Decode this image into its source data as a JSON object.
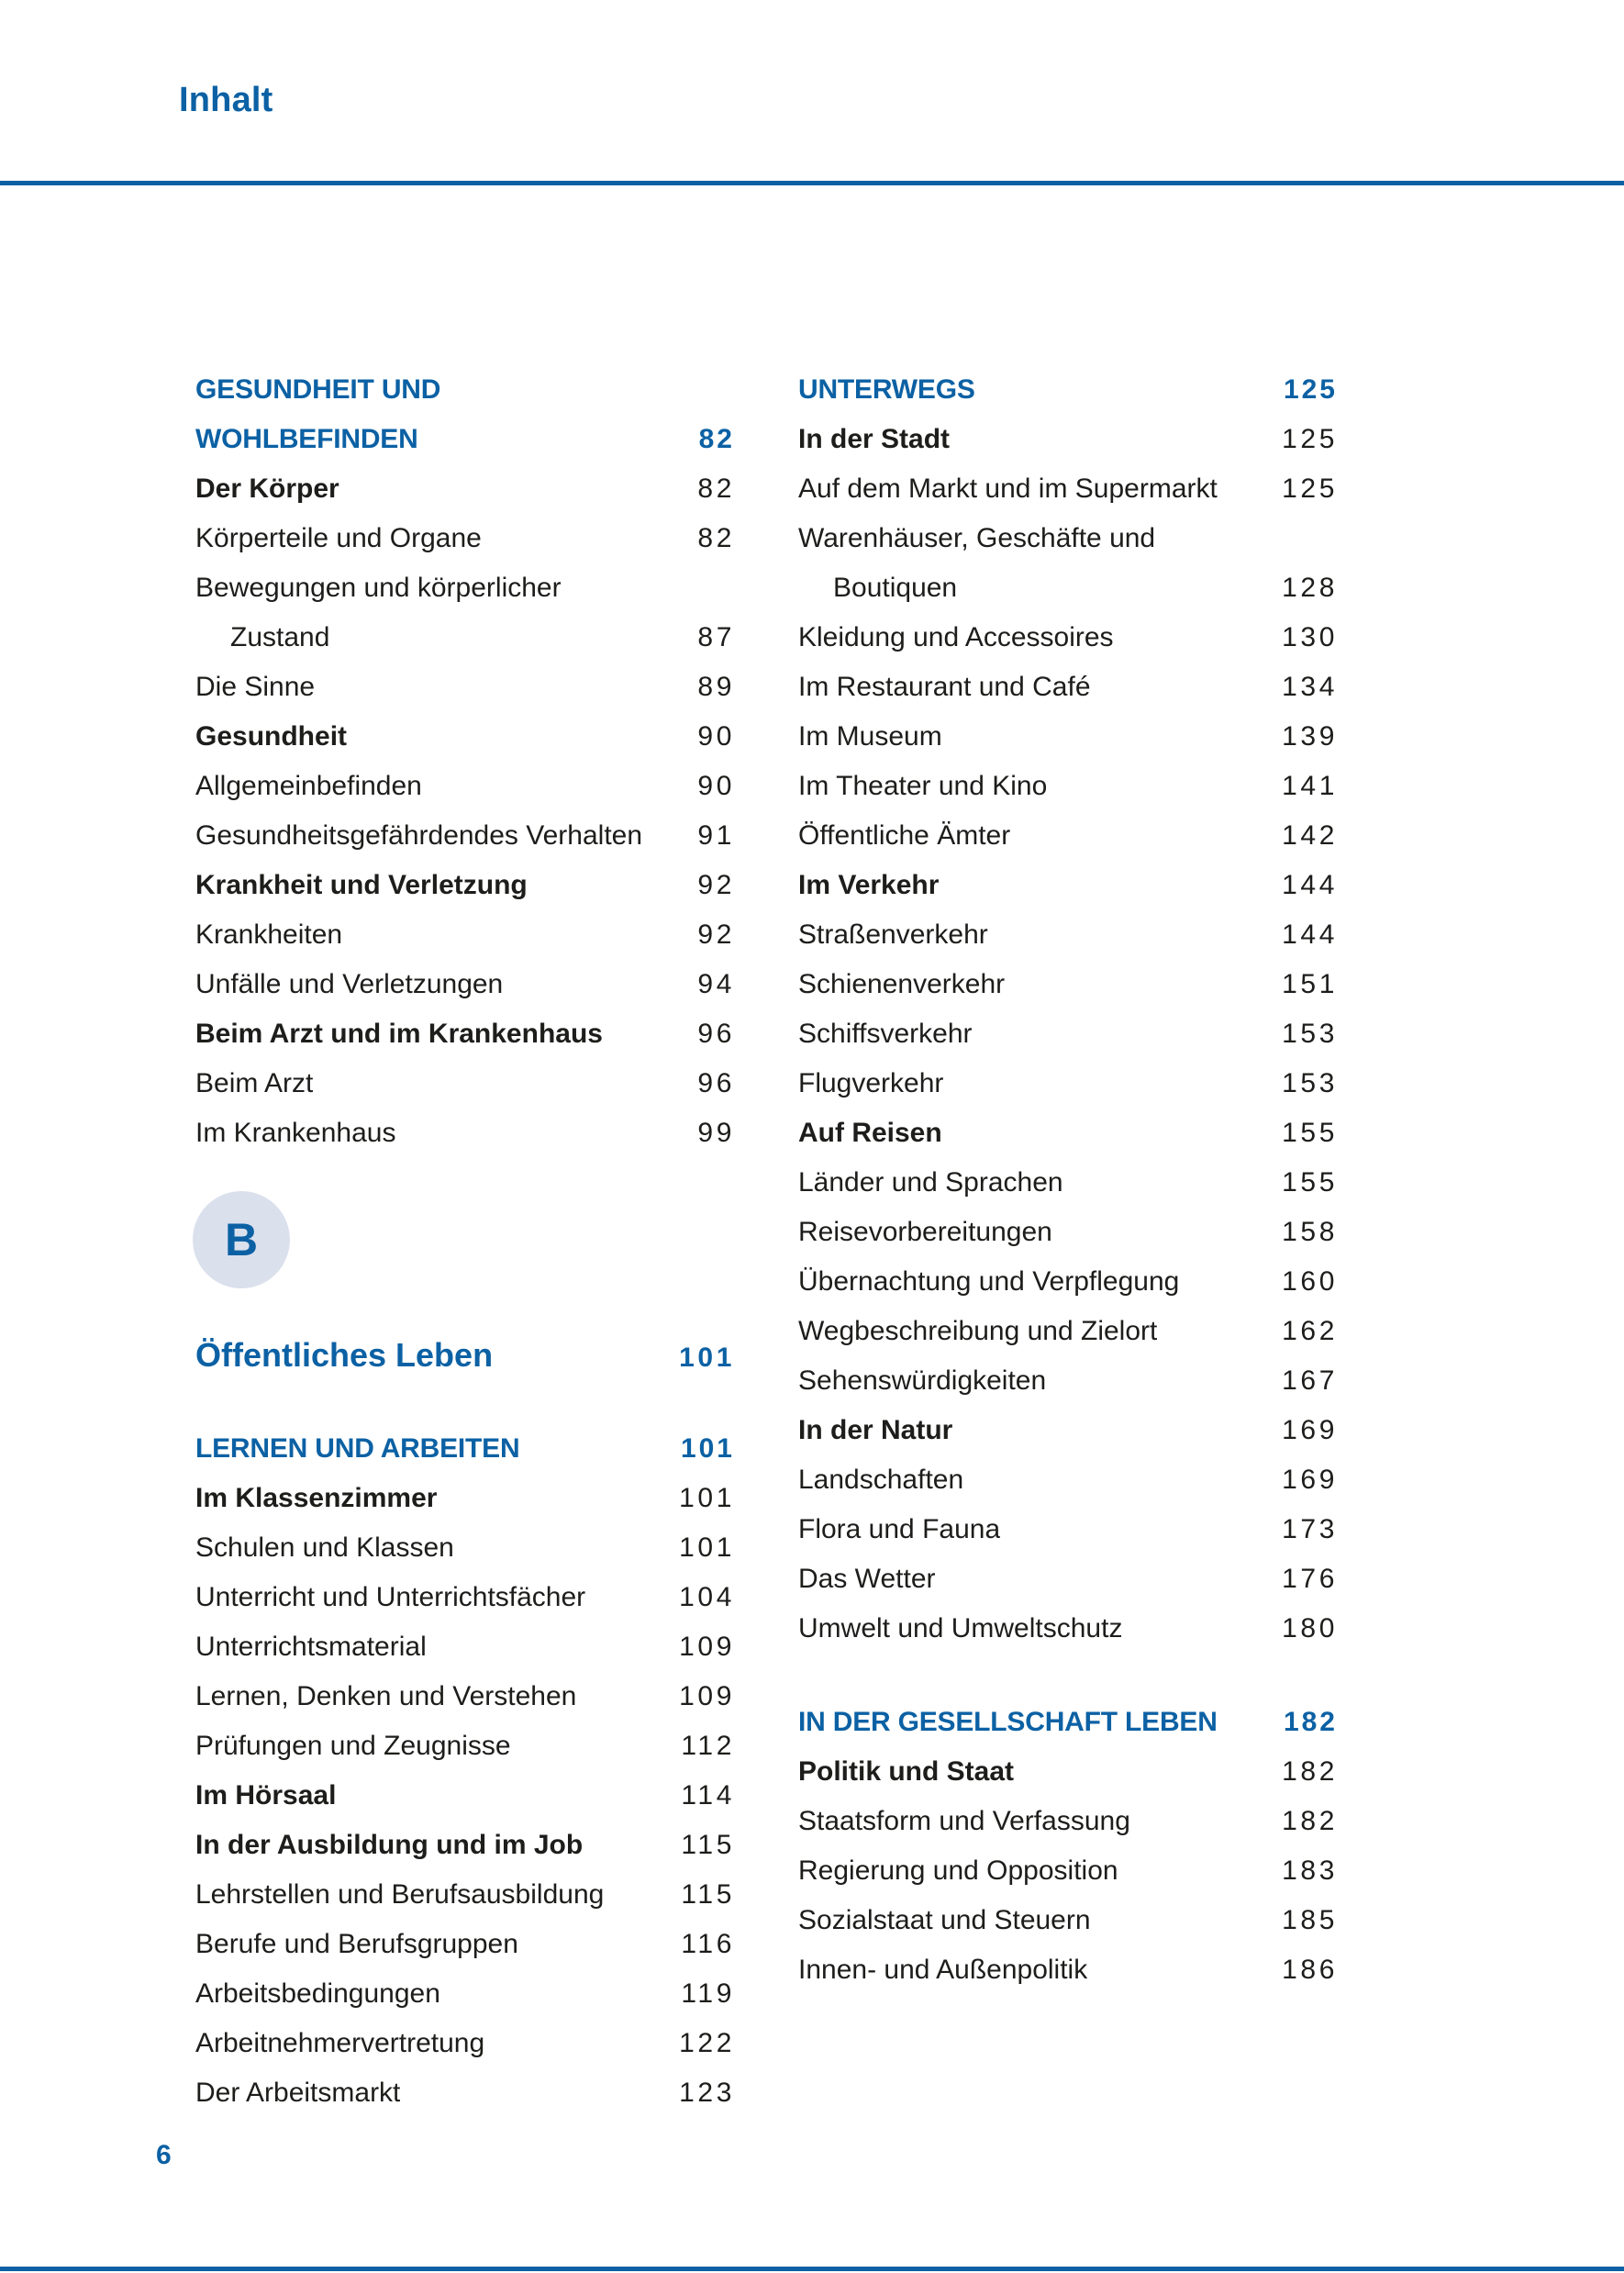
{
  "header": {
    "title": "Inhalt"
  },
  "footer": {
    "page_number": "6"
  },
  "colors": {
    "accent": "#0c61a4",
    "text": "#1d1d1b",
    "badge_bg": "#dbe0ed"
  },
  "badge": {
    "letter": "B"
  },
  "toc": {
    "left": [
      {
        "label": "GESUNDHEIT UND",
        "page": "",
        "style": "section"
      },
      {
        "label": "WOHLBEFINDEN",
        "page": "82",
        "style": "section"
      },
      {
        "label": "Der Körper",
        "page": "82",
        "style": "bold"
      },
      {
        "label": "Körperteile und Organe",
        "page": "82",
        "style": "regular"
      },
      {
        "label": "Bewegungen und körperlicher",
        "page": "",
        "style": "regular"
      },
      {
        "label": "Zustand",
        "page": "87",
        "style": "cont"
      },
      {
        "label": "Die Sinne",
        "page": "89",
        "style": "regular"
      },
      {
        "label": "Gesundheit",
        "page": "90",
        "style": "bold"
      },
      {
        "label": "Allgemeinbefinden",
        "page": "90",
        "style": "regular"
      },
      {
        "label": "Gesundheitsgefährdendes Verhalten",
        "page": "91",
        "style": "regular"
      },
      {
        "label": "Krankheit und Verletzung",
        "page": "92",
        "style": "bold"
      },
      {
        "label": "Krankheiten",
        "page": "92",
        "style": "regular"
      },
      {
        "label": "Unfälle und Verletzungen",
        "page": "94",
        "style": "regular"
      },
      {
        "label": "Beim Arzt und im Krankenhaus",
        "page": "96",
        "style": "bold"
      },
      {
        "label": "Beim Arzt",
        "page": "96",
        "style": "regular"
      },
      {
        "label": "Im Krankenhaus",
        "page": "99",
        "style": "regular"
      },
      {
        "label": "B",
        "page": "",
        "style": "badge"
      },
      {
        "label": "Öffentliches Leben",
        "page": "101",
        "style": "part"
      },
      {
        "label": "",
        "page": "",
        "style": "gap"
      },
      {
        "label": "LERNEN UND ARBEITEN",
        "page": "101",
        "style": "section"
      },
      {
        "label": "Im Klassenzimmer",
        "page": "101",
        "style": "bold"
      },
      {
        "label": "Schulen und Klassen",
        "page": "101",
        "style": "regular"
      },
      {
        "label": "Unterricht und Unterrichtsfächer",
        "page": "104",
        "style": "regular"
      },
      {
        "label": "Unterrichtsmaterial",
        "page": "109",
        "style": "regular"
      },
      {
        "label": "Lernen, Denken und Verstehen",
        "page": "109",
        "style": "regular"
      },
      {
        "label": "Prüfungen und Zeugnisse",
        "page": "112",
        "style": "regular"
      },
      {
        "label": "Im Hörsaal",
        "page": "114",
        "style": "bold"
      },
      {
        "label": "In der Ausbildung und im Job",
        "page": "115",
        "style": "bold"
      },
      {
        "label": "Lehrstellen und Berufsausbildung",
        "page": "115",
        "style": "regular"
      },
      {
        "label": "Berufe und Berufsgruppen",
        "page": "116",
        "style": "regular"
      },
      {
        "label": "Arbeitsbedingungen",
        "page": "119",
        "style": "regular"
      },
      {
        "label": "Arbeitnehmervertretung",
        "page": "122",
        "style": "regular"
      },
      {
        "label": "Der Arbeitsmarkt",
        "page": "123",
        "style": "regular"
      }
    ],
    "right": [
      {
        "label": "UNTERWEGS",
        "page": "125",
        "style": "section"
      },
      {
        "label": "In der Stadt",
        "page": "125",
        "style": "bold"
      },
      {
        "label": "Auf dem Markt und im Supermarkt",
        "page": "125",
        "style": "regular"
      },
      {
        "label": "Warenhäuser, Geschäfte und",
        "page": "",
        "style": "regular"
      },
      {
        "label": "Boutiquen",
        "page": "128",
        "style": "cont"
      },
      {
        "label": "Kleidung und Accessoires",
        "page": "130",
        "style": "regular"
      },
      {
        "label": "Im Restaurant und Café",
        "page": "134",
        "style": "regular"
      },
      {
        "label": "Im Museum",
        "page": "139",
        "style": "regular"
      },
      {
        "label": "Im Theater und Kino",
        "page": "141",
        "style": "regular"
      },
      {
        "label": "Öffentliche Ämter",
        "page": "142",
        "style": "regular"
      },
      {
        "label": "Im Verkehr",
        "page": "144",
        "style": "bold"
      },
      {
        "label": "Straßenverkehr",
        "page": "144",
        "style": "regular"
      },
      {
        "label": "Schienenverkehr",
        "page": "151",
        "style": "regular"
      },
      {
        "label": "Schiffsverkehr",
        "page": "153",
        "style": "regular"
      },
      {
        "label": "Flugverkehr",
        "page": "153",
        "style": "regular"
      },
      {
        "label": "Auf Reisen",
        "page": "155",
        "style": "bold"
      },
      {
        "label": "Länder und Sprachen",
        "page": "155",
        "style": "regular"
      },
      {
        "label": "Reisevorbereitungen",
        "page": "158",
        "style": "regular"
      },
      {
        "label": "Übernachtung und Verpflegung",
        "page": "160",
        "style": "regular"
      },
      {
        "label": "Wegbeschreibung und Zielort",
        "page": "162",
        "style": "regular"
      },
      {
        "label": "Sehenswürdigkeiten",
        "page": "167",
        "style": "regular"
      },
      {
        "label": "In der Natur",
        "page": "169",
        "style": "bold"
      },
      {
        "label": "Landschaften",
        "page": "169",
        "style": "regular"
      },
      {
        "label": "Flora und Fauna",
        "page": "173",
        "style": "regular"
      },
      {
        "label": "Das Wetter",
        "page": "176",
        "style": "regular"
      },
      {
        "label": "Umwelt und Umweltschutz",
        "page": "180",
        "style": "regular"
      },
      {
        "label": "",
        "page": "",
        "style": "gap"
      },
      {
        "label": "IN DER GESELLSCHAFT LEBEN",
        "page": "182",
        "style": "section"
      },
      {
        "label": "Politik und Staat",
        "page": "182",
        "style": "bold"
      },
      {
        "label": "Staatsform und Verfassung",
        "page": "182",
        "style": "regular"
      },
      {
        "label": "Regierung und Opposition",
        "page": "183",
        "style": "regular"
      },
      {
        "label": "Sozialstaat und Steuern",
        "page": "185",
        "style": "regular"
      },
      {
        "label": "Innen- und Außenpolitik",
        "page": "186",
        "style": "regular"
      }
    ]
  }
}
